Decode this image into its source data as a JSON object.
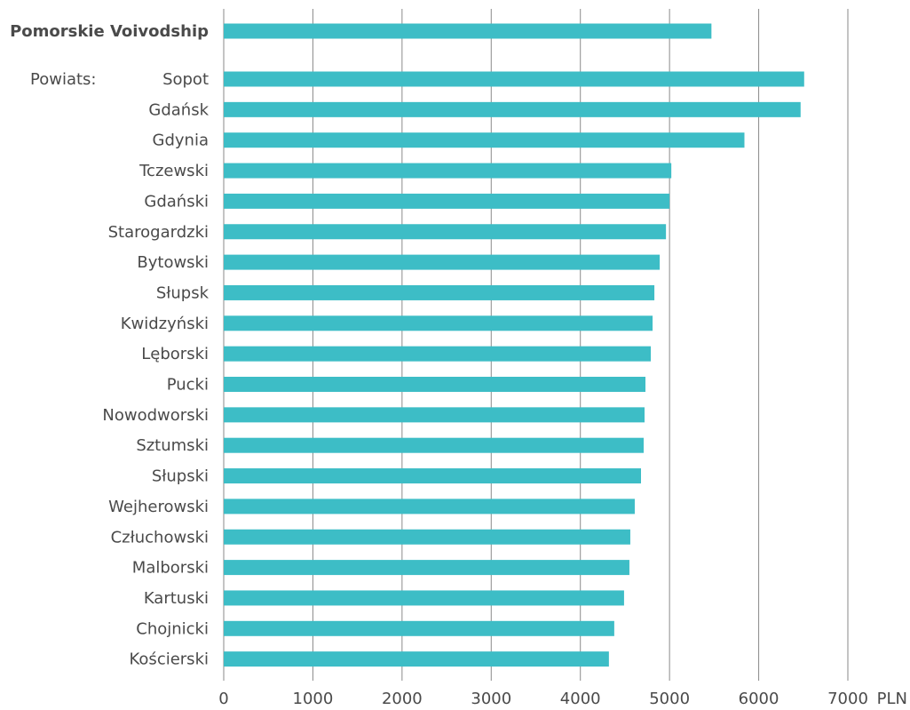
{
  "chart_data": {
    "type": "bar",
    "orientation": "horizontal",
    "total": {
      "category": "Pomorskie Voivodship",
      "value": 5470
    },
    "group_label": "Powiats:",
    "categories": [
      "Sopot",
      "Gdańsk",
      "Gdynia",
      "Tczewski",
      "Gdański",
      "Starogardzki",
      "Bytowski",
      "Słupsk",
      "Kwidzyński",
      "Lęborski",
      "Pucki",
      "Nowodworski",
      "Sztumski",
      "Słupski",
      "Wejherowski",
      "Człuchowski",
      "Malborski",
      "Kartuski",
      "Chojnicki",
      "Kościerski"
    ],
    "values": [
      6510,
      6470,
      5840,
      5020,
      5000,
      4960,
      4890,
      4830,
      4810,
      4790,
      4730,
      4720,
      4710,
      4680,
      4610,
      4560,
      4550,
      4490,
      4380,
      4320
    ],
    "xlim": [
      0,
      7000
    ],
    "x_ticks": [
      "0",
      "1000",
      "2000",
      "3000",
      "4000",
      "5000",
      "6000",
      "7000"
    ],
    "x_unit": "PLN",
    "grid": "vertical",
    "bar_color": "#3dbdc6"
  }
}
